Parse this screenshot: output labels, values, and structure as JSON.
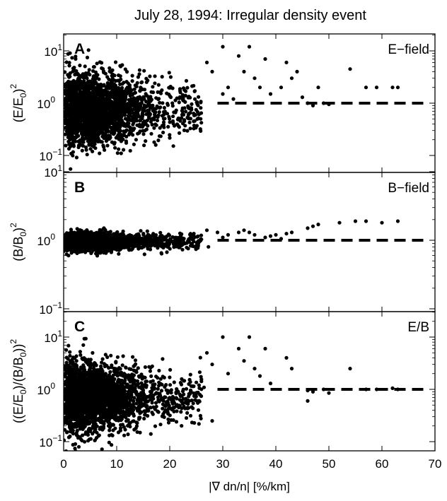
{
  "title": "July 28, 1994: Irregular density event",
  "chart_data": [
    {
      "type": "scatter",
      "panel_letter": "A",
      "panel_name": "E−field",
      "ylabel_main": "(E/E",
      "ylabel_sub": "0",
      "ylabel_tail": ")",
      "ylabel_exp": "2",
      "y_scale": "log",
      "ylim": [
        0.05,
        30
      ],
      "y_ticks": [
        {
          "value": 0.1,
          "base": "10",
          "exp": "−1"
        },
        {
          "value": 1,
          "base": "10",
          "exp": "0"
        },
        {
          "value": 10,
          "base": "10",
          "exp": "1"
        }
      ],
      "xlim": [
        0,
        70
      ],
      "reference_line": {
        "y": 1,
        "x_from": 29,
        "x_to": 70,
        "style": "dashed"
      },
      "cloud": {
        "median": 0.75,
        "spread_near_zero": 0.55,
        "spread_at_20": 0.42,
        "count": 2600
      },
      "outliers": [
        [
          27,
          6
        ],
        [
          28,
          4
        ],
        [
          30,
          12
        ],
        [
          31,
          2
        ],
        [
          33,
          8
        ],
        [
          34,
          4
        ],
        [
          35,
          12
        ],
        [
          36,
          3
        ],
        [
          37,
          2
        ],
        [
          38,
          7
        ],
        [
          39,
          1.5
        ],
        [
          42,
          6
        ],
        [
          43,
          3
        ],
        [
          44,
          4
        ],
        [
          46,
          1
        ],
        [
          47,
          0.9
        ],
        [
          49,
          1
        ],
        [
          50,
          0.95
        ],
        [
          54,
          4.5
        ],
        [
          57,
          2
        ],
        [
          59,
          2
        ],
        [
          62,
          2
        ],
        [
          63,
          2
        ],
        [
          30,
          1.5
        ],
        [
          32,
          1.2
        ],
        [
          41,
          2
        ],
        [
          45,
          1.3
        ],
        [
          48,
          2
        ]
      ]
    },
    {
      "type": "scatter",
      "panel_letter": "B",
      "panel_name": "B−field",
      "ylabel_main": "(B/B",
      "ylabel_sub": "0",
      "ylabel_tail": ")",
      "ylabel_exp": "2",
      "y_scale": "log",
      "ylim": [
        0.1,
        10
      ],
      "y_ticks": [
        {
          "value": 0.1,
          "base": "10",
          "exp": "−1"
        },
        {
          "value": 1,
          "base": "10",
          "exp": "0"
        },
        {
          "value": 10,
          "base": "10",
          "exp": "1"
        }
      ],
      "xlim": [
        0,
        70
      ],
      "reference_line": {
        "y": 1,
        "x_from": 29,
        "x_to": 70,
        "style": "dashed"
      },
      "cloud": {
        "median": 0.95,
        "spread_near_zero": 0.1,
        "spread_at_20": 0.09,
        "count": 2400
      },
      "outliers": [
        [
          27,
          1.4
        ],
        [
          29,
          1.3
        ],
        [
          31,
          1.2
        ],
        [
          33,
          1.3
        ],
        [
          34,
          1.4
        ],
        [
          35,
          1.3
        ],
        [
          36,
          1.2
        ],
        [
          38,
          1.1
        ],
        [
          39,
          1.15
        ],
        [
          40,
          1.2
        ],
        [
          42,
          1.25
        ],
        [
          43,
          1.3
        ],
        [
          46,
          1.5
        ],
        [
          47,
          1.6
        ],
        [
          48,
          1.7
        ],
        [
          52,
          1.8
        ],
        [
          55,
          1.9
        ],
        [
          57,
          1.9
        ],
        [
          60,
          1.8
        ],
        [
          63,
          1.9
        ],
        [
          30,
          1.1
        ],
        [
          41,
          1.05
        ]
      ]
    },
    {
      "type": "scatter",
      "panel_letter": "C",
      "panel_name": "E/B",
      "ylabel_main": "((E/E",
      "ylabel_sub": "0",
      "ylabel_mid": ")/(B/B",
      "ylabel_sub2": "0",
      "ylabel_tail": "))",
      "ylabel_exp": "2",
      "y_scale": "log",
      "ylim": [
        0.05,
        30
      ],
      "y_ticks": [
        {
          "value": 0.1,
          "base": "10",
          "exp": "−1"
        },
        {
          "value": 1,
          "base": "10",
          "exp": "0"
        },
        {
          "value": 10,
          "base": "10",
          "exp": "1"
        }
      ],
      "xlim": [
        0,
        70
      ],
      "xlabel": "|∇ dn/n|  [%/km]",
      "x_ticks": [
        0,
        10,
        20,
        30,
        40,
        50,
        60,
        70
      ],
      "reference_line": {
        "y": 1,
        "x_from": 29,
        "x_to": 70,
        "style": "dashed"
      },
      "cloud": {
        "median": 0.7,
        "spread_near_zero": 0.55,
        "spread_at_20": 0.42,
        "count": 2600
      },
      "outliers": [
        [
          27,
          5
        ],
        [
          28,
          3
        ],
        [
          30,
          10
        ],
        [
          31,
          2
        ],
        [
          33,
          6
        ],
        [
          34,
          3.5
        ],
        [
          35,
          10
        ],
        [
          36,
          2.5
        ],
        [
          37,
          1.8
        ],
        [
          38,
          6
        ],
        [
          39,
          1.3
        ],
        [
          42,
          4
        ],
        [
          43,
          2.5
        ],
        [
          46,
          0.95
        ],
        [
          47,
          0.9
        ],
        [
          49,
          1
        ],
        [
          50,
          0.85
        ],
        [
          54,
          2.5
        ],
        [
          57,
          1
        ],
        [
          59,
          1
        ],
        [
          62,
          1.05
        ],
        [
          63,
          1
        ],
        [
          46,
          0.6
        ],
        [
          28,
          0.25
        ]
      ]
    }
  ]
}
